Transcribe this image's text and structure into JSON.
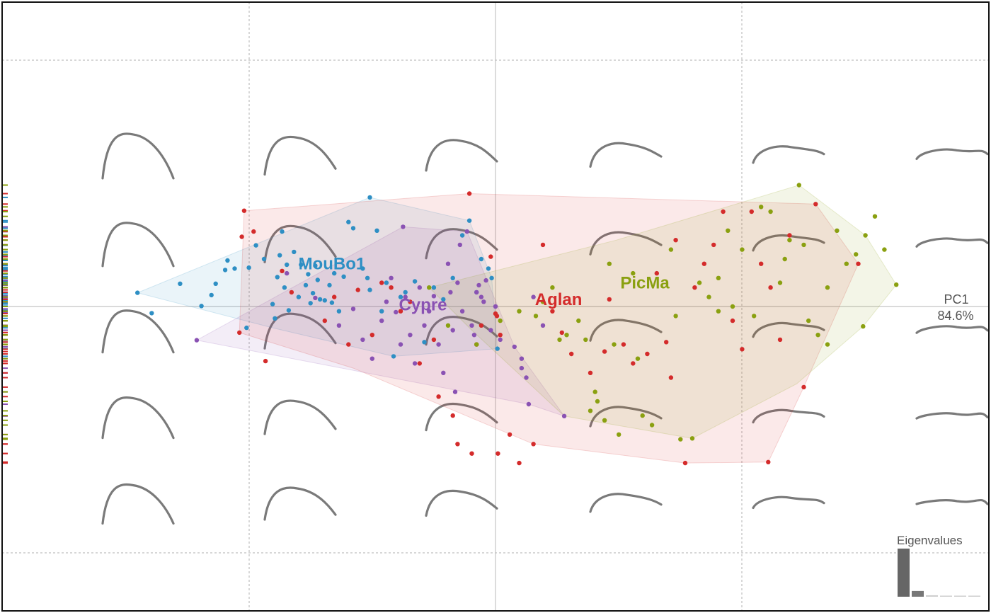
{
  "chart_data": {
    "type": "scatter",
    "title": "",
    "xlim": [
      -0.104,
      0.104
    ],
    "ylim": [
      -0.055,
      0.055
    ],
    "grid": true,
    "axis_labels": {
      "x_name": "PC1",
      "x_pct": "84.6%"
    },
    "eigen_label": "Eigenvalues",
    "eigenvalues": [
      84.6,
      10.1,
      2.6,
      1.3,
      0.8,
      0.6
    ],
    "series": [
      {
        "name": "MouBo1",
        "color": "#2e8fc4",
        "label_pos": [
          -0.0345,
          0.0078
        ],
        "hull": [
          [
            -0.0755,
            0.0029
          ],
          [
            -0.0265,
            0.023
          ],
          [
            -0.0055,
            0.0181
          ],
          [
            -0.0008,
            0.006
          ],
          [
            0.0004,
            -0.0089
          ],
          [
            -0.0215,
            -0.0105
          ],
          [
            -0.047,
            -0.0045
          ]
        ],
        "points": [
          [
            -0.0755,
            0.0029
          ],
          [
            -0.0725,
            -0.0014
          ],
          [
            -0.0665,
            0.0048
          ],
          [
            -0.062,
            0.0001
          ],
          [
            -0.0599,
            0.0024
          ],
          [
            -0.059,
            0.0048
          ],
          [
            -0.057,
            0.0077
          ],
          [
            -0.0565,
            0.0097
          ],
          [
            -0.055,
            0.008
          ],
          [
            -0.0525,
            -0.0045
          ],
          [
            -0.052,
            0.0082
          ],
          [
            -0.0505,
            0.0129
          ],
          [
            -0.0488,
            0.01
          ],
          [
            -0.047,
            0.0005
          ],
          [
            -0.0465,
            -0.0025
          ],
          [
            -0.046,
            0.0062
          ],
          [
            -0.0455,
            0.0108
          ],
          [
            -0.045,
            0.0158
          ],
          [
            -0.0445,
            0.004
          ],
          [
            -0.044,
            0.0088
          ],
          [
            -0.0436,
            -0.0008
          ],
          [
            -0.0425,
            0.0115
          ],
          [
            -0.0415,
            0.002
          ],
          [
            -0.041,
            0.0088
          ],
          [
            -0.04,
            0.0045
          ],
          [
            -0.0395,
            0.0068
          ],
          [
            -0.039,
            0.0007
          ],
          [
            -0.0385,
            0.0028
          ],
          [
            -0.038,
            0.0086
          ],
          [
            -0.0375,
            0.0056
          ],
          [
            -0.037,
            0.0015
          ],
          [
            -0.036,
            0.0013
          ],
          [
            -0.035,
            0.0045
          ],
          [
            -0.0345,
            0.0008
          ],
          [
            -0.034,
            0.007
          ],
          [
            -0.033,
            -0.001
          ],
          [
            -0.032,
            0.0063
          ],
          [
            -0.031,
            0.0178
          ],
          [
            -0.03,
            0.0165
          ],
          [
            -0.028,
            0.008
          ],
          [
            -0.027,
            0.006
          ],
          [
            -0.0265,
            0.0035
          ],
          [
            -0.025,
            0.016
          ],
          [
            -0.024,
            -0.001
          ],
          [
            -0.023,
            0.005
          ],
          [
            -0.0215,
            -0.0105
          ],
          [
            -0.02,
            0.002
          ],
          [
            -0.019,
            0.003
          ],
          [
            -0.017,
            0.0053
          ],
          [
            -0.015,
            -0.0075
          ],
          [
            -0.013,
            0.004
          ],
          [
            -0.011,
            0.0015
          ],
          [
            -0.009,
            0.006
          ],
          [
            -0.007,
            0.015
          ],
          [
            -0.004,
            0.003
          ],
          [
            -0.003,
            0.01
          ],
          [
            -0.0015,
            0.008
          ],
          [
            -0.0008,
            0.006
          ],
          [
            -0.0055,
            0.0181
          ],
          [
            -0.0265,
            0.023
          ],
          [
            0.0004,
            -0.0089
          ]
        ]
      },
      {
        "name": "Cypre",
        "color": "#8a52b3",
        "label_pos": [
          -0.0153,
          -0.0008
        ],
        "hull": [
          [
            -0.063,
            -0.0071
          ],
          [
            -0.0195,
            0.0168
          ],
          [
            -0.006,
            0.0158
          ],
          [
            0.004,
            -0.0085
          ],
          [
            0.0145,
            -0.0231
          ],
          [
            0.007,
            -0.0206
          ]
        ],
        "points": [
          [
            -0.063,
            -0.0071
          ],
          [
            -0.044,
            0.007
          ],
          [
            -0.038,
            0.0018
          ],
          [
            -0.033,
            -0.004
          ],
          [
            -0.03,
            -0.0005
          ],
          [
            -0.028,
            -0.007
          ],
          [
            -0.026,
            -0.011
          ],
          [
            -0.024,
            -0.003
          ],
          [
            -0.023,
            0.001
          ],
          [
            -0.022,
            0.006
          ],
          [
            -0.021,
            -0.0012
          ],
          [
            -0.02,
            -0.008
          ],
          [
            -0.0195,
            0.0168
          ],
          [
            -0.019,
            0.002
          ],
          [
            -0.018,
            -0.006
          ],
          [
            -0.017,
            -0.012
          ],
          [
            -0.016,
            0.004
          ],
          [
            -0.015,
            -0.004
          ],
          [
            -0.014,
            -0.001
          ],
          [
            -0.013,
            0.0022
          ],
          [
            -0.012,
            -0.008
          ],
          [
            -0.011,
            -0.014
          ],
          [
            -0.01,
            0.009
          ],
          [
            -0.0095,
            0.003
          ],
          [
            -0.009,
            -0.005
          ],
          [
            -0.0085,
            -0.018
          ],
          [
            -0.008,
            0.005
          ],
          [
            -0.0075,
            0.013
          ],
          [
            -0.007,
            -0.001
          ],
          [
            -0.006,
            0.0158
          ],
          [
            -0.005,
            -0.004
          ],
          [
            -0.0045,
            -0.006
          ],
          [
            -0.004,
            0.003
          ],
          [
            -0.0035,
            0.0045
          ],
          [
            -0.003,
            0.002
          ],
          [
            -0.0025,
            0.001
          ],
          [
            -0.002,
            0.0055
          ],
          [
            -0.001,
            -0.005
          ],
          [
            0.0,
            0.0
          ],
          [
            0.001,
            -0.007
          ],
          [
            0.004,
            -0.0085
          ],
          [
            0.0055,
            -0.013
          ],
          [
            0.0055,
            -0.011
          ],
          [
            0.0065,
            -0.015
          ],
          [
            0.008,
            0.002
          ],
          [
            0.01,
            -0.004
          ],
          [
            0.0145,
            -0.0231
          ],
          [
            0.007,
            -0.0206
          ]
        ]
      },
      {
        "name": "Aglan",
        "color": "#d42b2b",
        "label_pos": [
          0.0133,
          0.0003
        ],
        "hull": [
          [
            -0.053,
            0.0202
          ],
          [
            -0.0055,
            0.0238
          ],
          [
            0.0675,
            0.0216
          ],
          [
            0.0765,
            0.009
          ],
          [
            0.065,
            -0.017
          ],
          [
            0.0575,
            -0.0328
          ],
          [
            0.04,
            -0.033
          ],
          [
            0.008,
            -0.029
          ],
          [
            -0.03,
            -0.013
          ],
          [
            -0.054,
            -0.0055
          ]
        ],
        "points": [
          [
            -0.053,
            0.0202
          ],
          [
            -0.0535,
            0.0147
          ],
          [
            -0.051,
            0.0158
          ],
          [
            -0.054,
            -0.0055
          ],
          [
            -0.0485,
            -0.0115
          ],
          [
            -0.045,
            0.0075
          ],
          [
            -0.043,
            0.003
          ],
          [
            -0.036,
            -0.003
          ],
          [
            -0.034,
            0.002
          ],
          [
            -0.031,
            -0.008
          ],
          [
            -0.029,
            0.0035
          ],
          [
            -0.026,
            -0.006
          ],
          [
            -0.024,
            0.005
          ],
          [
            -0.022,
            0.004
          ],
          [
            -0.02,
            -0.001
          ],
          [
            -0.018,
            0.001
          ],
          [
            -0.016,
            -0.012
          ],
          [
            -0.013,
            -0.007
          ],
          [
            -0.012,
            -0.019
          ],
          [
            -0.009,
            -0.023
          ],
          [
            -0.008,
            -0.029
          ],
          [
            -0.0055,
            0.0238
          ],
          [
            -0.005,
            -0.031
          ],
          [
            -0.004,
            -0.008
          ],
          [
            -0.003,
            -0.004
          ],
          [
            -0.001,
            0.0105
          ],
          [
            0.0,
            -0.0015
          ],
          [
            0.0003,
            -0.002
          ],
          [
            0.0005,
            -0.031
          ],
          [
            0.001,
            -0.006
          ],
          [
            0.003,
            -0.027
          ],
          [
            0.005,
            -0.033
          ],
          [
            0.008,
            -0.029
          ],
          [
            0.01,
            0.013
          ],
          [
            0.012,
            -0.001
          ],
          [
            0.014,
            -0.0055
          ],
          [
            0.016,
            -0.01
          ],
          [
            0.02,
            -0.014
          ],
          [
            0.023,
            -0.0095
          ],
          [
            0.024,
            0.0015
          ],
          [
            0.027,
            -0.008
          ],
          [
            0.029,
            -0.012
          ],
          [
            0.032,
            -0.01
          ],
          [
            0.034,
            0.007
          ],
          [
            0.038,
            0.014
          ],
          [
            0.042,
            0.004
          ],
          [
            0.044,
            0.009
          ],
          [
            0.046,
            0.013
          ],
          [
            0.048,
            0.02
          ],
          [
            0.05,
            -0.003
          ],
          [
            0.052,
            -0.009
          ],
          [
            0.054,
            0.02
          ],
          [
            0.056,
            0.009
          ],
          [
            0.058,
            0.004
          ],
          [
            0.06,
            -0.007
          ],
          [
            0.062,
            0.015
          ],
          [
            0.065,
            -0.017
          ],
          [
            0.0675,
            0.0216
          ],
          [
            0.0765,
            0.009
          ],
          [
            0.0575,
            -0.0328
          ],
          [
            0.04,
            -0.033
          ],
          [
            0.036,
            -0.0075
          ],
          [
            0.037,
            -0.015
          ]
        ]
      },
      {
        "name": "PicMa",
        "color": "#8aa010",
        "label_pos": [
          0.0315,
          0.0038
        ],
        "hull": [
          [
            -0.014,
            0.004
          ],
          [
            0.0255,
            0.014
          ],
          [
            0.064,
            0.0256
          ],
          [
            0.078,
            0.015
          ],
          [
            0.0845,
            0.0046
          ],
          [
            0.0775,
            -0.0042
          ],
          [
            0.0635,
            -0.0163
          ],
          [
            0.0415,
            -0.0278
          ],
          [
            0.0145,
            -0.0231
          ],
          [
            -0.005,
            -0.005
          ]
        ],
        "points": [
          [
            -0.014,
            0.004
          ],
          [
            -0.01,
            -0.004
          ],
          [
            -0.004,
            -0.008
          ],
          [
            0.001,
            -0.003
          ],
          [
            0.005,
            -0.001
          ],
          [
            0.0085,
            -0.002
          ],
          [
            0.01,
            0.001
          ],
          [
            0.012,
            0.004
          ],
          [
            0.0135,
            -0.007
          ],
          [
            0.015,
            -0.006
          ],
          [
            0.0175,
            -0.003
          ],
          [
            0.019,
            -0.007
          ],
          [
            0.02,
            -0.022
          ],
          [
            0.021,
            -0.018
          ],
          [
            0.0215,
            -0.02
          ],
          [
            0.023,
            -0.024
          ],
          [
            0.024,
            0.009
          ],
          [
            0.025,
            -0.008
          ],
          [
            0.026,
            -0.027
          ],
          [
            0.029,
            0.007
          ],
          [
            0.03,
            -0.011
          ],
          [
            0.031,
            -0.023
          ],
          [
            0.033,
            -0.025
          ],
          [
            0.037,
            0.012
          ],
          [
            0.038,
            -0.002
          ],
          [
            0.039,
            -0.028
          ],
          [
            0.0415,
            -0.0278
          ],
          [
            0.045,
            0.002
          ],
          [
            0.047,
            0.006
          ],
          [
            0.049,
            0.016
          ],
          [
            0.05,
            0.0
          ],
          [
            0.052,
            0.012
          ],
          [
            0.0545,
            -0.002
          ],
          [
            0.056,
            0.021
          ],
          [
            0.058,
            0.02
          ],
          [
            0.06,
            0.005
          ],
          [
            0.061,
            0.01
          ],
          [
            0.062,
            0.014
          ],
          [
            0.064,
            0.0256
          ],
          [
            0.066,
            -0.003
          ],
          [
            0.068,
            -0.006
          ],
          [
            0.07,
            -0.008
          ],
          [
            0.072,
            0.016
          ],
          [
            0.074,
            0.009
          ],
          [
            0.076,
            0.011
          ],
          [
            0.078,
            0.015
          ],
          [
            0.08,
            0.019
          ],
          [
            0.082,
            0.012
          ],
          [
            0.0845,
            0.0046
          ],
          [
            0.0775,
            -0.0042
          ],
          [
            0.07,
            0.004
          ],
          [
            0.065,
            0.013
          ],
          [
            0.043,
            0.005
          ],
          [
            0.047,
            -0.001
          ]
        ]
      }
    ]
  }
}
